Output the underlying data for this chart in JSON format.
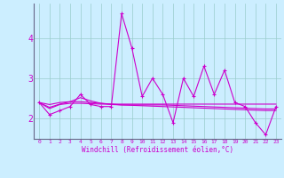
{
  "xlabel": "Windchill (Refroidissement éolien,°C)",
  "background_color": "#cceeff",
  "line_color": "#cc00cc",
  "xlim": [
    -0.5,
    23.5
  ],
  "ylim": [
    1.5,
    4.85
  ],
  "yticks": [
    2,
    3,
    4
  ],
  "xticks": [
    0,
    1,
    2,
    3,
    4,
    5,
    6,
    7,
    8,
    9,
    10,
    11,
    12,
    13,
    14,
    15,
    16,
    17,
    18,
    19,
    20,
    21,
    22,
    23
  ],
  "hours": [
    0,
    1,
    2,
    3,
    4,
    5,
    6,
    7,
    8,
    9,
    10,
    11,
    12,
    13,
    14,
    15,
    16,
    17,
    18,
    19,
    20,
    21,
    22,
    23
  ],
  "series1": [
    2.4,
    2.1,
    2.2,
    2.3,
    2.6,
    2.35,
    2.3,
    2.3,
    4.6,
    3.75,
    2.55,
    3.0,
    2.6,
    1.9,
    3.0,
    2.55,
    3.3,
    2.6,
    3.2,
    2.4,
    2.3,
    1.9,
    1.6,
    2.3
  ],
  "series2": [
    2.4,
    2.25,
    2.35,
    2.38,
    2.38,
    2.37,
    2.36,
    2.36,
    2.36,
    2.36,
    2.36,
    2.36,
    2.36,
    2.36,
    2.36,
    2.36,
    2.36,
    2.36,
    2.36,
    2.36,
    2.36,
    2.36,
    2.36,
    2.36
  ],
  "series3": [
    2.4,
    2.35,
    2.4,
    2.42,
    2.42,
    2.4,
    2.38,
    2.36,
    2.34,
    2.33,
    2.32,
    2.31,
    2.3,
    2.29,
    2.28,
    2.27,
    2.26,
    2.25,
    2.24,
    2.23,
    2.22,
    2.21,
    2.2,
    2.2
  ],
  "series4": [
    2.4,
    2.28,
    2.36,
    2.42,
    2.52,
    2.44,
    2.38,
    2.35,
    2.34,
    2.34,
    2.34,
    2.34,
    2.34,
    2.33,
    2.32,
    2.31,
    2.3,
    2.29,
    2.28,
    2.27,
    2.26,
    2.25,
    2.24,
    2.24
  ]
}
